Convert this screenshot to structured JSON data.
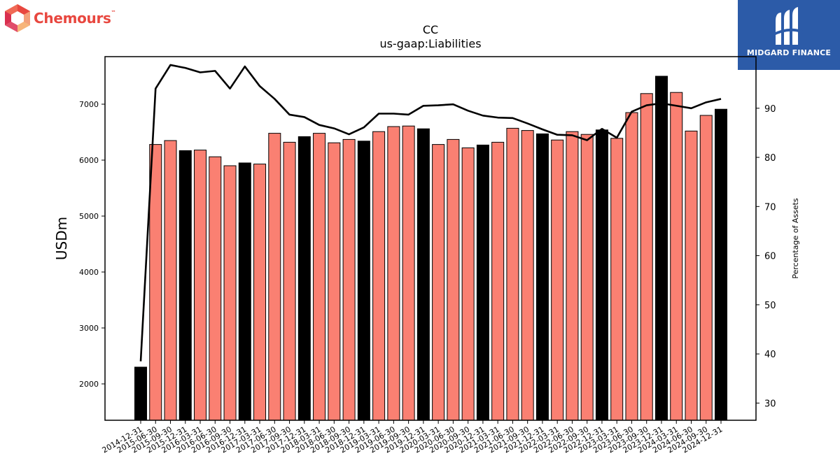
{
  "logos": {
    "left_text": "Chemours",
    "left_tm": "™",
    "right_text": "MIDGARD FINANCE"
  },
  "colors": {
    "bar_default": "#fa8072",
    "bar_highlight": "#000000",
    "line": "#000000",
    "logo_left": "#e8473f",
    "logo_right_bg": "#2c5ba8"
  },
  "chart_data": {
    "type": "bar",
    "title": "CC",
    "subtitle": "us-gaap:Liabilities",
    "ylabel": "USDm",
    "y2label": "Percentage of Assets",
    "ylim": [
      1350,
      7850
    ],
    "y2lim": [
      26.5,
      100.5
    ],
    "yticks": [
      2000,
      3000,
      4000,
      5000,
      6000,
      7000
    ],
    "y2ticks": [
      30,
      40,
      50,
      60,
      70,
      80,
      90
    ],
    "categories": [
      "2014-12-31",
      "2015-06-30",
      "2015-09-30",
      "2015-12-31",
      "2016-03-31",
      "2016-06-30",
      "2016-09-30",
      "2016-12-31",
      "2017-03-31",
      "2017-06-30",
      "2017-09-30",
      "2017-12-31",
      "2018-03-31",
      "2018-06-30",
      "2018-09-30",
      "2018-12-31",
      "2019-03-31",
      "2019-06-30",
      "2019-09-30",
      "2019-12-31",
      "2020-03-31",
      "2020-06-30",
      "2020-09-30",
      "2020-12-31",
      "2021-03-31",
      "2021-06-30",
      "2021-09-30",
      "2021-12-31",
      "2022-03-31",
      "2022-06-30",
      "2022-09-30",
      "2022-12-31",
      "2023-03-31",
      "2023-06-30",
      "2023-09-30",
      "2023-12-31",
      "2024-03-31",
      "2024-06-30",
      "2024-09-30",
      "2024-12-31"
    ],
    "series": [
      {
        "type": "bar",
        "values": [
          2300,
          6280,
          6350,
          6170,
          6180,
          6060,
          5900,
          5950,
          5930,
          6480,
          6320,
          6420,
          6480,
          6310,
          6370,
          6340,
          6510,
          6600,
          6610,
          6560,
          6280,
          6370,
          6220,
          6270,
          6320,
          6570,
          6530,
          6470,
          6360,
          6510,
          6460,
          6540,
          6390,
          6850,
          7190,
          7500,
          7210,
          6520,
          6800,
          6910
        ],
        "highlight": [
          true,
          false,
          false,
          true,
          false,
          false,
          false,
          true,
          false,
          false,
          false,
          true,
          false,
          false,
          false,
          true,
          false,
          false,
          false,
          true,
          false,
          false,
          false,
          true,
          false,
          false,
          false,
          true,
          false,
          false,
          false,
          true,
          false,
          false,
          false,
          true,
          false,
          false,
          false,
          true
        ]
      },
      {
        "type": "line",
        "axis": "right",
        "values": [
          38.5,
          94,
          98.8,
          98.2,
          97.3,
          97.6,
          94,
          98.5,
          94.5,
          91.9,
          88.7,
          88.2,
          86.6,
          85.9,
          84.7,
          86.1,
          88.9,
          88.9,
          88.7,
          90.5,
          90.6,
          90.8,
          89.5,
          88.5,
          88.1,
          88,
          86.9,
          85.7,
          84.6,
          84.5,
          83.5,
          85.8,
          84,
          89.3,
          90.6,
          91,
          90.5,
          90,
          91.2,
          91.9
        ]
      }
    ]
  }
}
